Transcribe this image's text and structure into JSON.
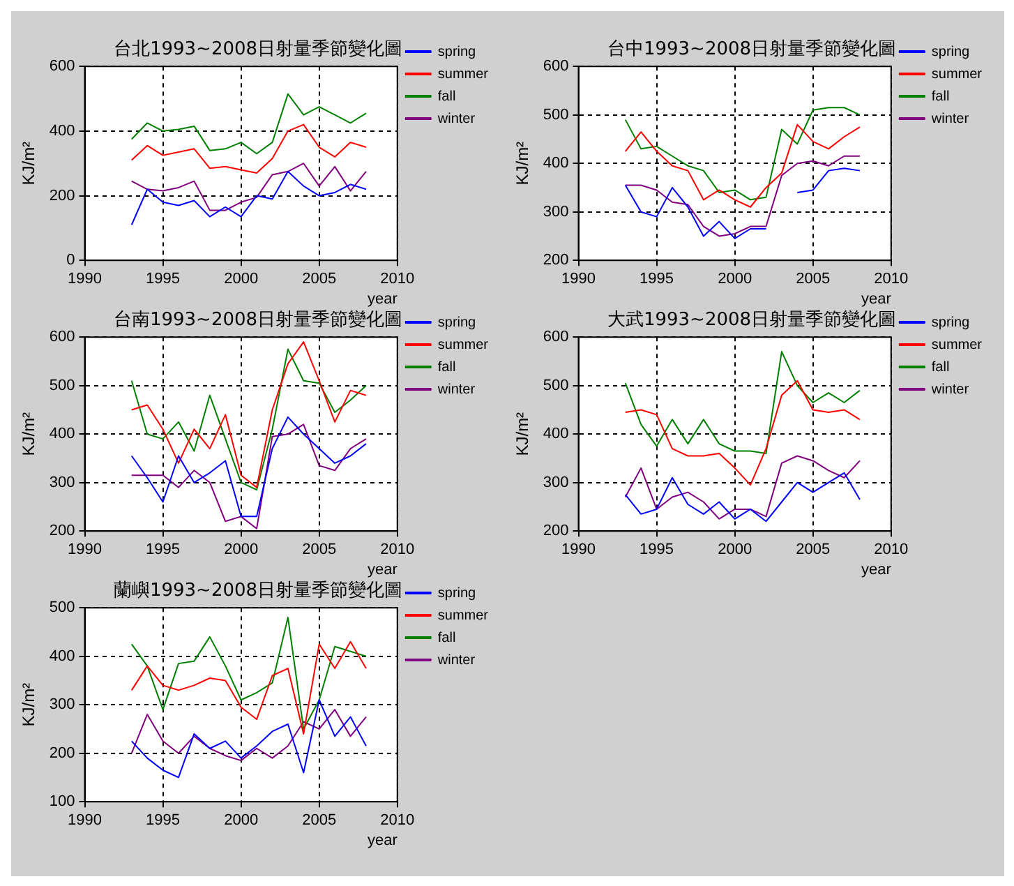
{
  "chart_data": [
    {
      "type": "line",
      "title": "台北1993~2008日射量季節變化圖",
      "xlabel": "year",
      "ylabel": "KJ/m²",
      "x": [
        1993,
        1994,
        1995,
        1996,
        1997,
        1998,
        1999,
        2000,
        2001,
        2002,
        2003,
        2004,
        2005,
        2006,
        2007,
        2008
      ],
      "xlim": [
        1990,
        2010
      ],
      "xticks": [
        1990,
        1995,
        2000,
        2005,
        2010
      ],
      "ylim": [
        0,
        600
      ],
      "yticks": [
        0,
        200,
        400,
        600
      ],
      "grid": true,
      "legend": "right",
      "marker": "none",
      "series": [
        {
          "name": "spring",
          "color": "#0000ff",
          "values": [
            110,
            220,
            180,
            170,
            185,
            135,
            165,
            135,
            200,
            190,
            275,
            230,
            200,
            210,
            235,
            220
          ]
        },
        {
          "name": "summer",
          "color": "#ff0000",
          "values": [
            310,
            355,
            325,
            335,
            345,
            285,
            290,
            280,
            270,
            315,
            400,
            420,
            350,
            320,
            365,
            350
          ]
        },
        {
          "name": "fall",
          "color": "#008000",
          "values": [
            375,
            425,
            400,
            405,
            415,
            340,
            345,
            365,
            330,
            365,
            515,
            450,
            475,
            450,
            425,
            455
          ]
        },
        {
          "name": "winter",
          "color": "#800080",
          "values": [
            245,
            220,
            215,
            225,
            245,
            155,
            155,
            180,
            195,
            265,
            275,
            300,
            230,
            290,
            215,
            275
          ]
        }
      ]
    },
    {
      "type": "line",
      "title": "台中1993~2008日射量季節變化圖",
      "xlabel": "year",
      "ylabel": "KJ/m²",
      "x": [
        1993,
        1994,
        1995,
        1996,
        1997,
        1998,
        1999,
        2000,
        2001,
        2002,
        2003,
        2004,
        2005,
        2006,
        2007,
        2008
      ],
      "xlim": [
        1990,
        2010
      ],
      "xticks": [
        1990,
        1995,
        2000,
        2005,
        2010
      ],
      "ylim": [
        200,
        600
      ],
      "yticks": [
        200,
        300,
        400,
        500,
        600
      ],
      "grid": true,
      "legend": "right",
      "marker": "none",
      "series": [
        {
          "name": "spring",
          "color": "#0000ff",
          "values": [
            355,
            300,
            290,
            350,
            310,
            250,
            280,
            245,
            265,
            265,
            null,
            340,
            345,
            385,
            390,
            385
          ]
        },
        {
          "name": "summer",
          "color": "#ff0000",
          "values": [
            425,
            465,
            425,
            395,
            385,
            325,
            345,
            325,
            310,
            350,
            380,
            480,
            445,
            430,
            455,
            475
          ]
        },
        {
          "name": "fall",
          "color": "#008000",
          "values": [
            490,
            430,
            435,
            415,
            395,
            385,
            340,
            345,
            325,
            330,
            470,
            440,
            510,
            515,
            515,
            500
          ]
        },
        {
          "name": "winter",
          "color": "#800080",
          "values": [
            355,
            355,
            345,
            320,
            315,
            270,
            250,
            255,
            270,
            270,
            375,
            400,
            405,
            395,
            415,
            415
          ]
        }
      ]
    },
    {
      "type": "line",
      "title": "台南1993~2008日射量季節變化圖",
      "xlabel": "year",
      "ylabel": "KJ/m²",
      "x": [
        1993,
        1994,
        1995,
        1996,
        1997,
        1998,
        1999,
        2000,
        2001,
        2002,
        2003,
        2004,
        2005,
        2006,
        2007,
        2008
      ],
      "xlim": [
        1990,
        2010
      ],
      "xticks": [
        1990,
        1995,
        2000,
        2005,
        2010
      ],
      "ylim": [
        200,
        600
      ],
      "yticks": [
        200,
        300,
        400,
        500,
        600
      ],
      "grid": true,
      "legend": "right",
      "marker": "none",
      "series": [
        {
          "name": "spring",
          "color": "#0000ff",
          "values": [
            355,
            310,
            260,
            355,
            300,
            320,
            345,
            230,
            230,
            370,
            435,
            400,
            370,
            340,
            355,
            380
          ]
        },
        {
          "name": "summer",
          "color": "#ff0000",
          "values": [
            450,
            460,
            410,
            340,
            410,
            370,
            440,
            315,
            290,
            450,
            545,
            590,
            510,
            425,
            490,
            480
          ]
        },
        {
          "name": "fall",
          "color": "#008000",
          "values": [
            510,
            400,
            390,
            425,
            365,
            480,
            390,
            300,
            285,
            410,
            575,
            510,
            505,
            445,
            470,
            500
          ]
        },
        {
          "name": "winter",
          "color": "#800080",
          "values": [
            315,
            315,
            315,
            290,
            325,
            300,
            220,
            230,
            205,
            395,
            400,
            420,
            335,
            325,
            370,
            390
          ]
        }
      ]
    },
    {
      "type": "line",
      "title": "大武1993~2008日射量季節變化圖",
      "xlabel": "year",
      "ylabel": "KJ/m²",
      "x": [
        1993,
        1994,
        1995,
        1996,
        1997,
        1998,
        1999,
        2000,
        2001,
        2002,
        2003,
        2004,
        2005,
        2006,
        2007,
        2008
      ],
      "xlim": [
        1990,
        2010
      ],
      "xticks": [
        1990,
        1995,
        2000,
        2005,
        2010
      ],
      "ylim": [
        200,
        600
      ],
      "yticks": [
        200,
        300,
        400,
        500,
        600
      ],
      "grid": true,
      "legend": "right",
      "marker": "none",
      "series": [
        {
          "name": "spring",
          "color": "#0000ff",
          "values": [
            275,
            235,
            245,
            310,
            255,
            235,
            260,
            225,
            245,
            220,
            260,
            300,
            280,
            300,
            320,
            265
          ]
        },
        {
          "name": "summer",
          "color": "#ff0000",
          "values": [
            445,
            450,
            440,
            370,
            355,
            355,
            360,
            330,
            295,
            370,
            480,
            510,
            450,
            445,
            450,
            430
          ]
        },
        {
          "name": "fall",
          "color": "#008000",
          "values": [
            505,
            420,
            375,
            430,
            380,
            430,
            380,
            365,
            365,
            360,
            570,
            500,
            465,
            485,
            465,
            490
          ]
        },
        {
          "name": "winter",
          "color": "#800080",
          "values": [
            270,
            330,
            245,
            270,
            280,
            260,
            225,
            245,
            245,
            230,
            340,
            355,
            345,
            325,
            310,
            345
          ]
        }
      ]
    },
    {
      "type": "line",
      "title": "蘭嶼1993~2008日射量季節變化圖",
      "xlabel": "year",
      "ylabel": "KJ/m²",
      "x": [
        1993,
        1994,
        1995,
        1996,
        1997,
        1998,
        1999,
        2000,
        2001,
        2002,
        2003,
        2004,
        2005,
        2006,
        2007,
        2008
      ],
      "xlim": [
        1990,
        2010
      ],
      "xticks": [
        1990,
        1995,
        2000,
        2005,
        2010
      ],
      "ylim": [
        100,
        500
      ],
      "yticks": [
        100,
        200,
        300,
        400,
        500
      ],
      "grid": true,
      "legend": "right",
      "marker": "none",
      "series": [
        {
          "name": "spring",
          "color": "#0000ff",
          "values": [
            225,
            190,
            165,
            150,
            240,
            210,
            225,
            190,
            215,
            245,
            260,
            160,
            310,
            235,
            275,
            215
          ]
        },
        {
          "name": "summer",
          "color": "#ff0000",
          "values": [
            330,
            380,
            340,
            330,
            340,
            355,
            350,
            295,
            270,
            360,
            375,
            240,
            425,
            375,
            430,
            375
          ]
        },
        {
          "name": "fall",
          "color": "#008000",
          "values": [
            425,
            380,
            290,
            385,
            390,
            440,
            380,
            310,
            325,
            345,
            480,
            250,
            310,
            420,
            410,
            400
          ]
        },
        {
          "name": "winter",
          "color": "#800080",
          "values": [
            200,
            280,
            225,
            200,
            235,
            210,
            195,
            185,
            210,
            190,
            215,
            265,
            250,
            290,
            235,
            275
          ]
        }
      ]
    }
  ]
}
